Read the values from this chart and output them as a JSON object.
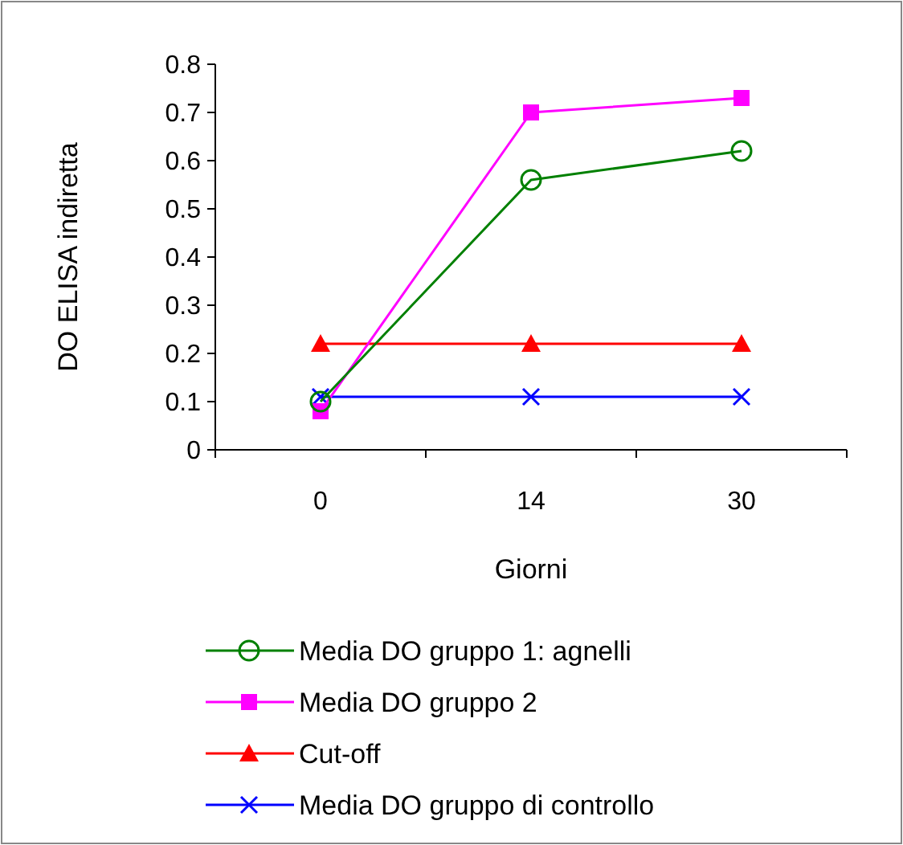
{
  "chart_data": {
    "type": "line",
    "xlabel": "Giorni",
    "ylabel": "DO ELISA indiretta",
    "categories": [
      "0",
      "14",
      "30"
    ],
    "ylim": [
      0,
      0.8
    ],
    "yticks": [
      0,
      0.1,
      0.2,
      0.3,
      0.4,
      0.5,
      0.6,
      0.7,
      0.8
    ],
    "grid": false,
    "legend": "bottom",
    "series": [
      {
        "name": "Media DO gruppo 1: agnelli",
        "color": "#008000",
        "marker": "circle",
        "values": [
          0.1,
          0.56,
          0.62
        ]
      },
      {
        "name": "Media DO gruppo 2",
        "color": "#ff00ff",
        "marker": "square",
        "values": [
          0.08,
          0.7,
          0.73
        ]
      },
      {
        "name": "Cut-off",
        "color": "#ff0000",
        "marker": "triangle",
        "values": [
          0.22,
          0.22,
          0.22
        ]
      },
      {
        "name": "Media DO gruppo di controllo",
        "color": "#0000ff",
        "marker": "cross",
        "values": [
          0.11,
          0.11,
          0.11
        ]
      }
    ]
  }
}
